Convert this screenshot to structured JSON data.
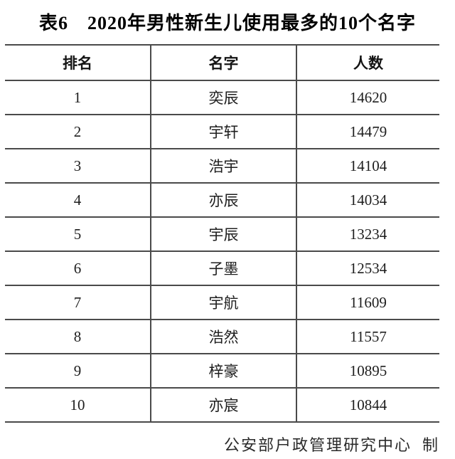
{
  "title": "表6　2020年男性新生儿使用最多的10个名字",
  "table": {
    "headers": [
      "排名",
      "名字",
      "人数"
    ],
    "rows": [
      {
        "rank": "1",
        "name": "奕辰",
        "count": "14620"
      },
      {
        "rank": "2",
        "name": "宇轩",
        "count": "14479"
      },
      {
        "rank": "3",
        "name": "浩宇",
        "count": "14104"
      },
      {
        "rank": "4",
        "name": "亦辰",
        "count": "14034"
      },
      {
        "rank": "5",
        "name": "宇辰",
        "count": "13234"
      },
      {
        "rank": "6",
        "name": "子墨",
        "count": "12534"
      },
      {
        "rank": "7",
        "name": "宇航",
        "count": "11609"
      },
      {
        "rank": "8",
        "name": "浩然",
        "count": "11557"
      },
      {
        "rank": "9",
        "name": "梓豪",
        "count": "10895"
      },
      {
        "rank": "10",
        "name": "亦宸",
        "count": "10844"
      }
    ]
  },
  "footer_credit": "公安部户政管理研究中心  制",
  "colors": {
    "background": "#ffffff",
    "text": "#1e1e1e",
    "title_text": "#000000",
    "rule_line": "#4a4a4a"
  },
  "chart_data": {
    "type": "table",
    "title": "表6　2020年男性新生儿使用最多的10个名字",
    "columns": [
      "排名",
      "名字",
      "人数"
    ],
    "rows": [
      [
        1,
        "奕辰",
        14620
      ],
      [
        2,
        "宇轩",
        14479
      ],
      [
        3,
        "浩宇",
        14104
      ],
      [
        4,
        "亦辰",
        14034
      ],
      [
        5,
        "宇辰",
        13234
      ],
      [
        6,
        "子墨",
        12534
      ],
      [
        7,
        "宇航",
        11609
      ],
      [
        8,
        "浩然",
        11557
      ],
      [
        9,
        "梓豪",
        10895
      ],
      [
        10,
        "亦宸",
        10844
      ]
    ],
    "source_note": "公安部户政管理研究中心  制",
    "layout_hints": {
      "style": "three-line table with internal column separators, no outer side borders",
      "header_bold": true,
      "value_range": [
        10844,
        14620
      ]
    }
  }
}
